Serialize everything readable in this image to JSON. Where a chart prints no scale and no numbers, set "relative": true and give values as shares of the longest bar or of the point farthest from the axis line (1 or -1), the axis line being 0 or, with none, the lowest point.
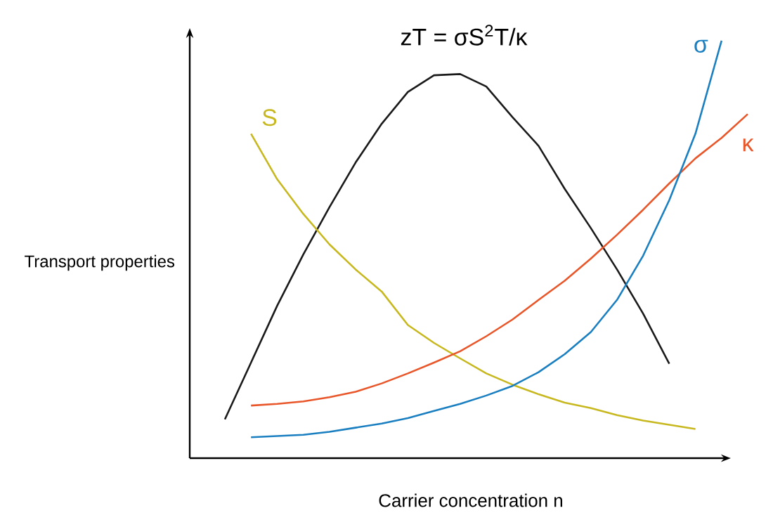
{
  "chart_data": {
    "type": "line",
    "title": "zT = σS$^{2}$T/κ",
    "xlabel": "Carrier concentration n",
    "ylabel": "Transport properties",
    "relative": true,
    "marker": "none",
    "line_style": "solid",
    "categories": [
      null,
      null,
      null,
      null,
      null,
      null,
      null,
      null,
      null,
      null,
      null,
      null,
      null,
      null,
      null,
      null,
      null,
      null,
      null,
      null,
      null
    ],
    "series": [
      {
        "color": "#1a1a1a",
        "values": [
          0.093,
          0.229,
          0.365,
          0.488,
          0.601,
          0.708,
          0.801,
          0.877,
          0.917,
          0.92,
          0.89,
          0.817,
          0.748,
          0.645,
          0.551,
          0.452,
          0.346,
          0.226,
          null,
          null,
          null
        ]
      },
      {
        "name": "S",
        "color": "#c8b820",
        "values": [
          null,
          0.777,
          0.668,
          0.585,
          0.512,
          0.452,
          0.399,
          0.319,
          0.276,
          0.239,
          0.203,
          0.176,
          0.153,
          0.133,
          0.12,
          0.103,
          0.09,
          0.08,
          0.07,
          null,
          null
        ]
      },
      {
        "name": "κ",
        "color": "#e8562a",
        "values": [
          null,
          0.126,
          0.13,
          0.136,
          0.146,
          0.159,
          0.179,
          0.203,
          0.229,
          0.256,
          0.292,
          0.332,
          0.379,
          0.425,
          0.478,
          0.535,
          0.595,
          0.658,
          0.718,
          0.767,
          0.824
        ]
      },
      {
        "name": "σ",
        "color": "#1a7fc0",
        "values": [
          null,
          0.05,
          0.053,
          0.056,
          0.063,
          0.073,
          0.083,
          0.096,
          0.113,
          0.13,
          0.15,
          0.173,
          0.206,
          0.249,
          0.302,
          0.379,
          0.485,
          0.618,
          0.777,
          1.0,
          null
        ]
      }
    ]
  }
}
